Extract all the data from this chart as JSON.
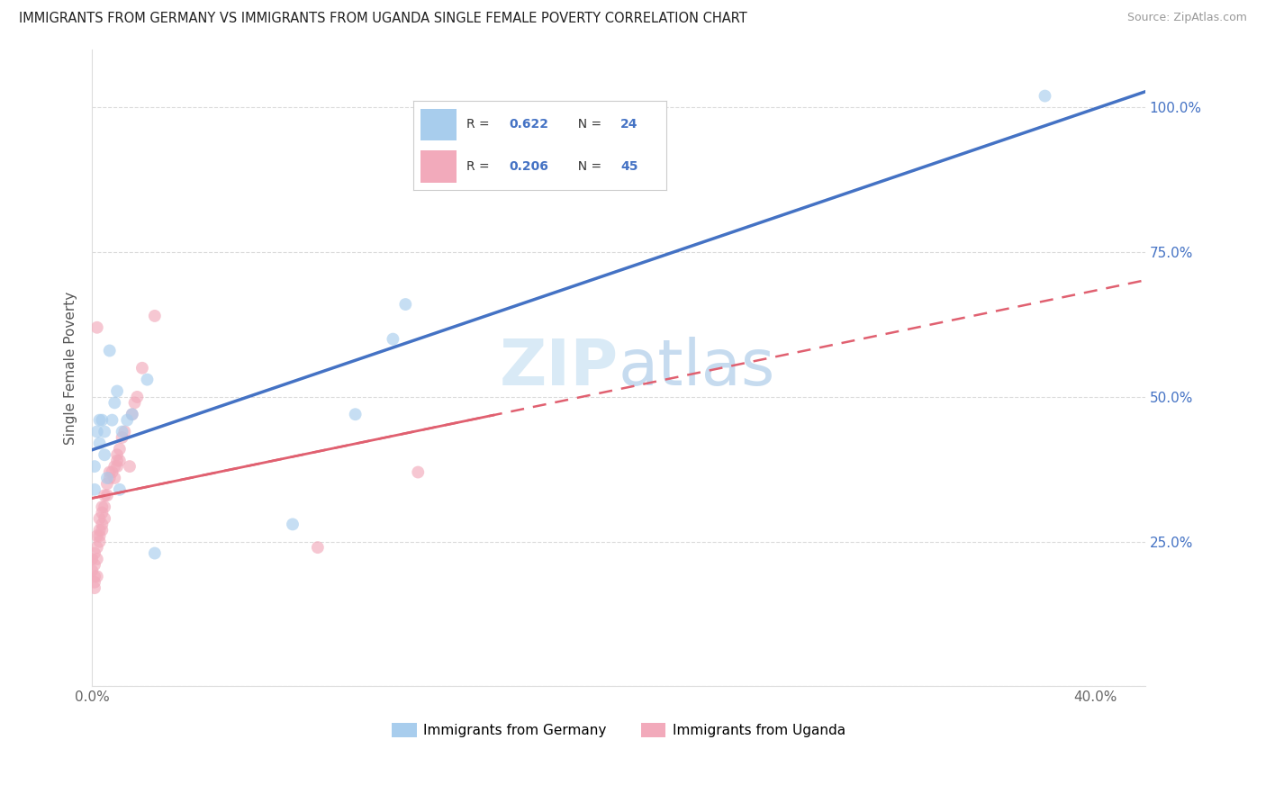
{
  "title": "IMMIGRANTS FROM GERMANY VS IMMIGRANTS FROM UGANDA SINGLE FEMALE POVERTY CORRELATION CHART",
  "source": "Source: ZipAtlas.com",
  "ylabel": "Single Female Poverty",
  "xlim": [
    0.0,
    0.42
  ],
  "ylim": [
    0.0,
    1.1
  ],
  "x_ticks": [
    0.0,
    0.05,
    0.1,
    0.15,
    0.2,
    0.25,
    0.3,
    0.35,
    0.4
  ],
  "x_tick_labels": [
    "0.0%",
    "",
    "",
    "",
    "",
    "",
    "",
    "",
    "40.0%"
  ],
  "y_ticks": [
    0.0,
    0.25,
    0.5,
    0.75,
    1.0
  ],
  "y_tick_labels_right": [
    "",
    "25.0%",
    "50.0%",
    "75.0%",
    "100.0%"
  ],
  "legend_R_germany": "0.622",
  "legend_N_germany": "24",
  "legend_R_uganda": "0.206",
  "legend_N_uganda": "45",
  "germany_color": "#A8CDED",
  "uganda_color": "#F2AABB",
  "germany_line_color": "#4472C4",
  "uganda_line_color": "#E06070",
  "watermark_color": "#D5E8F5",
  "dot_size": 100,
  "dot_alpha": 0.65,
  "germany_x": [
    0.001,
    0.001,
    0.002,
    0.003,
    0.004,
    0.005,
    0.006,
    0.007,
    0.008,
    0.01,
    0.011,
    0.012,
    0.014,
    0.016,
    0.022,
    0.025,
    0.08,
    0.105,
    0.12,
    0.125,
    0.003,
    0.005,
    0.009,
    0.38
  ],
  "germany_y": [
    0.38,
    0.34,
    0.44,
    0.42,
    0.46,
    0.44,
    0.36,
    0.58,
    0.46,
    0.51,
    0.34,
    0.44,
    0.46,
    0.47,
    0.53,
    0.23,
    0.28,
    0.47,
    0.6,
    0.66,
    0.46,
    0.4,
    0.49,
    1.02
  ],
  "uganda_x": [
    0.0,
    0.0,
    0.001,
    0.001,
    0.001,
    0.001,
    0.001,
    0.002,
    0.002,
    0.002,
    0.002,
    0.003,
    0.003,
    0.003,
    0.003,
    0.004,
    0.004,
    0.004,
    0.004,
    0.005,
    0.005,
    0.005,
    0.006,
    0.006,
    0.007,
    0.007,
    0.008,
    0.009,
    0.009,
    0.01,
    0.01,
    0.01,
    0.011,
    0.011,
    0.012,
    0.013,
    0.015,
    0.016,
    0.017,
    0.018,
    0.02,
    0.025,
    0.09,
    0.13,
    0.002
  ],
  "uganda_y": [
    0.2,
    0.22,
    0.21,
    0.23,
    0.19,
    0.18,
    0.17,
    0.24,
    0.26,
    0.22,
    0.19,
    0.27,
    0.29,
    0.26,
    0.25,
    0.31,
    0.3,
    0.28,
    0.27,
    0.33,
    0.31,
    0.29,
    0.33,
    0.35,
    0.36,
    0.37,
    0.37,
    0.38,
    0.36,
    0.39,
    0.4,
    0.38,
    0.41,
    0.39,
    0.43,
    0.44,
    0.38,
    0.47,
    0.49,
    0.5,
    0.55,
    0.64,
    0.24,
    0.37,
    0.62
  ],
  "grid_color": "#CCCCCC",
  "spine_color": "#DDDDDD",
  "tick_color": "#666666"
}
